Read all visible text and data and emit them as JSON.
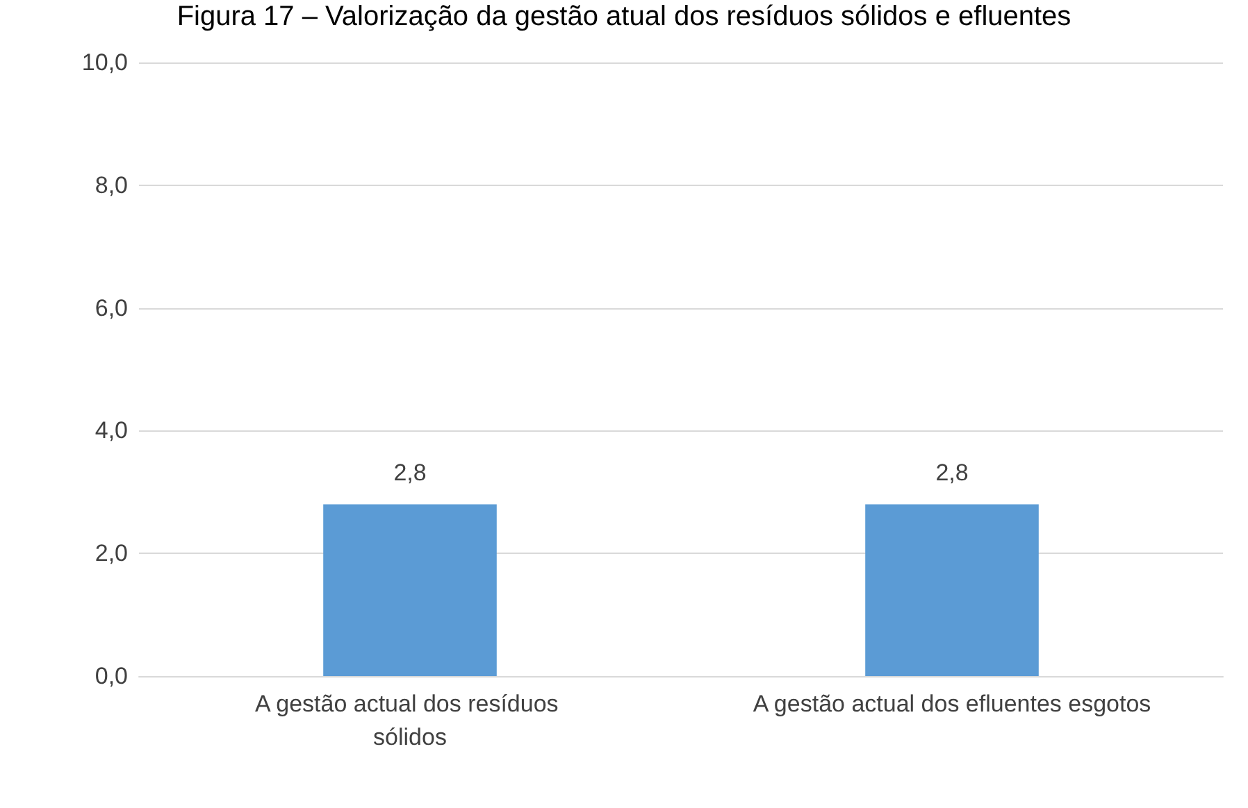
{
  "chart_data": {
    "type": "bar",
    "title": "Figura 17 – Valorização da gestão atual dos resíduos sólidos e efluentes",
    "categories": [
      "A gestão actual dos resíduos sólidos",
      "A gestão actual dos efluentes esgotos"
    ],
    "values": [
      2.8,
      2.8
    ],
    "value_labels": [
      "2,8",
      "2,8"
    ],
    "color": "#5b9bd5",
    "ylim": [
      0,
      10
    ],
    "yticks": [
      {
        "value": 0,
        "label": "0,0"
      },
      {
        "value": 2,
        "label": "2,0"
      },
      {
        "value": 4,
        "label": "4,0"
      },
      {
        "value": 6,
        "label": "6,0"
      },
      {
        "value": 8,
        "label": "8,0"
      },
      {
        "value": 10,
        "label": "10,0"
      }
    ],
    "grid": "y"
  }
}
